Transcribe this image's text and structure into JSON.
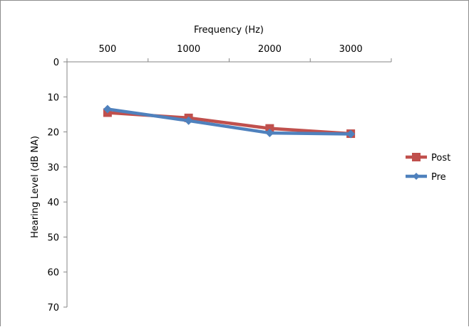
{
  "chart_data": {
    "type": "line",
    "title": "",
    "xlabel": "Frequency (Hz)",
    "ylabel": "Hearing Level (dB NA)",
    "categories": [
      "500",
      "1000",
      "2000",
      "3000"
    ],
    "ylim": [
      0,
      70
    ],
    "y_inverted": true,
    "y_ticks": [
      0,
      10,
      20,
      30,
      40,
      50,
      60,
      70
    ],
    "x_axis_position": "top",
    "grid": false,
    "legend_position": "right",
    "series": [
      {
        "name": "Post",
        "values": [
          14.5,
          16.0,
          19.0,
          20.5
        ],
        "color": "#c0504d",
        "marker": "square"
      },
      {
        "name": "Pre",
        "values": [
          13.5,
          16.8,
          20.3,
          20.6
        ],
        "color": "#4f81bd",
        "marker": "diamond"
      }
    ]
  }
}
